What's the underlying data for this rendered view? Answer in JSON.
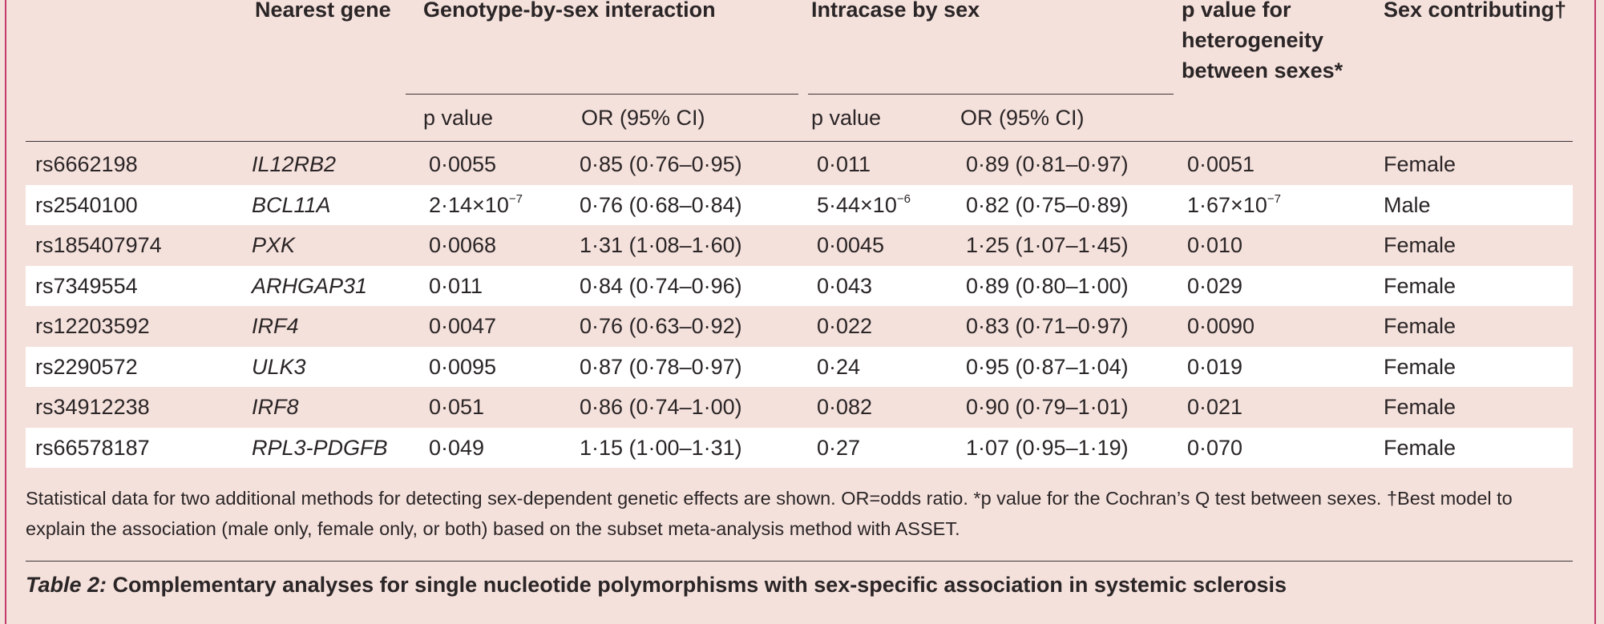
{
  "headers": {
    "nearest_gene": "Nearest gene",
    "interaction": "Genotype-by-sex interaction",
    "intracase": "Intracase by sex",
    "heterogeneity_1": "p value for",
    "heterogeneity_2": "heterogeneity",
    "heterogeneity_3": "between sexes*",
    "sex_contributing": "Sex contributing†",
    "p_value": "p value",
    "or_ci": "OR (95% CI)"
  },
  "rows": [
    {
      "snp": "rs6662198",
      "gene": "IL12RB2",
      "int_p": "0·0055",
      "int_p_exp": "",
      "int_or": "0·85 (0·76–0·95)",
      "ic_p": "0·011",
      "ic_p_exp": "",
      "ic_or": "0·89 (0·81–0·97)",
      "het_p": "0·0051",
      "het_p_exp": "",
      "sex": "Female"
    },
    {
      "snp": "rs2540100",
      "gene": "BCL11A",
      "int_p": "2·14×10",
      "int_p_exp": "−7",
      "int_or": "0·76 (0·68–0·84)",
      "ic_p": "5·44×10",
      "ic_p_exp": "−6",
      "ic_or": "0·82 (0·75–0·89)",
      "het_p": "1·67×10",
      "het_p_exp": "−7",
      "sex": "Male"
    },
    {
      "snp": "rs185407974",
      "gene": "PXK",
      "int_p": "0·0068",
      "int_p_exp": "",
      "int_or": "1·31 (1·08–1·60)",
      "ic_p": "0·0045",
      "ic_p_exp": "",
      "ic_or": "1·25 (1·07–1·45)",
      "het_p": "0·010",
      "het_p_exp": "",
      "sex": "Female"
    },
    {
      "snp": "rs7349554",
      "gene": "ARHGAP31",
      "int_p": "0·011",
      "int_p_exp": "",
      "int_or": "0·84 (0·74–0·96)",
      "ic_p": "0·043",
      "ic_p_exp": "",
      "ic_or": "0·89 (0·80–1·00)",
      "het_p": "0·029",
      "het_p_exp": "",
      "sex": "Female"
    },
    {
      "snp": "rs12203592",
      "gene": "IRF4",
      "int_p": "0·0047",
      "int_p_exp": "",
      "int_or": "0·76 (0·63–0·92)",
      "ic_p": "0·022",
      "ic_p_exp": "",
      "ic_or": "0·83 (0·71–0·97)",
      "het_p": "0·0090",
      "het_p_exp": "",
      "sex": "Female"
    },
    {
      "snp": "rs2290572",
      "gene": "ULK3",
      "int_p": "0·0095",
      "int_p_exp": "",
      "int_or": "0·87 (0·78–0·97)",
      "ic_p": "0·24",
      "ic_p_exp": "",
      "ic_or": "0·95 (0·87–1·04)",
      "het_p": "0·019",
      "het_p_exp": "",
      "sex": "Female"
    },
    {
      "snp": "rs34912238",
      "gene": "IRF8",
      "int_p": "0·051",
      "int_p_exp": "",
      "int_or": "0·86 (0·74–1·00)",
      "ic_p": "0·082",
      "ic_p_exp": "",
      "ic_or": "0·90 (0·79–1·01)",
      "het_p": "0·021",
      "het_p_exp": "",
      "sex": "Female"
    },
    {
      "snp": "rs66578187",
      "gene": "RPL3-PDGFB",
      "int_p": "0·049",
      "int_p_exp": "",
      "int_or": "1·15 (1·00–1·31)",
      "ic_p": "0·27",
      "ic_p_exp": "",
      "ic_or": "1·07 (0·95–1·19)",
      "het_p": "0·070",
      "het_p_exp": "",
      "sex": "Female"
    }
  ],
  "footnote": "Statistical data for two additional methods for detecting sex-dependent genetic effects are shown. OR=odds ratio. *p value for the Cochran’s Q test between sexes. †Best model to explain the association (male only, female only, or both) based on the subset meta-analysis method with ASSET.",
  "caption": {
    "label": "Table 2:",
    "text": " Complementary analyses for single nucleotide polymorphisms with sex-specific association in systemic sclerosis"
  },
  "colors": {
    "background": "#f5e1dc",
    "stripe": "#ffffff",
    "frame": "#c23a6a"
  }
}
